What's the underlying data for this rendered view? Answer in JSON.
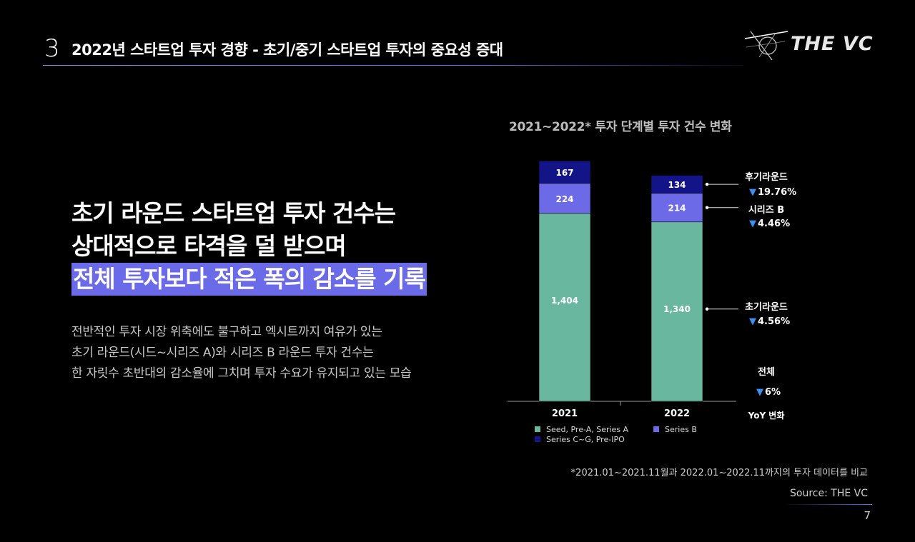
{
  "header": {
    "section_number": "3",
    "title": "2022년 스타트업 투자 경향 - 초기/중기 스타트업 투자의 중요성 증대"
  },
  "logo": {
    "text": "THE VC"
  },
  "headline": {
    "line1": "초기 라운드 스타트업 투자 건수는",
    "line2": "상대적으로 타격을 덜 받으며",
    "line3_highlight": "전체 투자보다 적은 폭의 감소를 기록"
  },
  "body": {
    "line1": "전반적인 투자 시장 위축에도 불구하고 엑시트까지 여유가 있는",
    "line2": "초기 라운드(시드~시리즈 A)와 시리즈 B 라운드 투자 건수는",
    "line3": "한 자릿수 초반대의 감소율에 그치며 투자 수요가 유지되고 있는 모습"
  },
  "chart_data": {
    "type": "bar",
    "stacked": true,
    "title": "2021~2022* 투자 단계별 투자 건수 변화",
    "categories": [
      "2021",
      "2022"
    ],
    "series": [
      {
        "name": "Seed, Pre-A, Series A",
        "values": [
          1404,
          1340
        ],
        "labels": [
          "1,404",
          "1,340"
        ],
        "color": "#6ab7a0"
      },
      {
        "name": "Series B",
        "values": [
          224,
          214
        ],
        "labels": [
          "224",
          "214"
        ],
        "color": "#6d6ae8"
      },
      {
        "name": "Series C~G, Pre-IPO",
        "values": [
          167,
          134
        ],
        "labels": [
          "167",
          "134"
        ],
        "color": "#131487"
      }
    ],
    "yoy": [
      {
        "label": "후기라운드",
        "value": "19.76%"
      },
      {
        "label": "시리즈 B",
        "value": "4.46%"
      },
      {
        "label": "초기라운드",
        "value": "4.56%"
      },
      {
        "label": "전체",
        "value": "6%"
      }
    ],
    "yoy_caption": "YoY 변화",
    "down_arrow": "▼",
    "legend_position": "bottom",
    "grid": false,
    "colors": {
      "down_arrow": "#3d8ff0",
      "axis": "#9a9a9a"
    }
  },
  "footnote": "*2021.01~2021.11월과 2022.01~2022.11까지의 투자 데이터를 비교",
  "source": "Source: THE VC",
  "page_number": "7"
}
